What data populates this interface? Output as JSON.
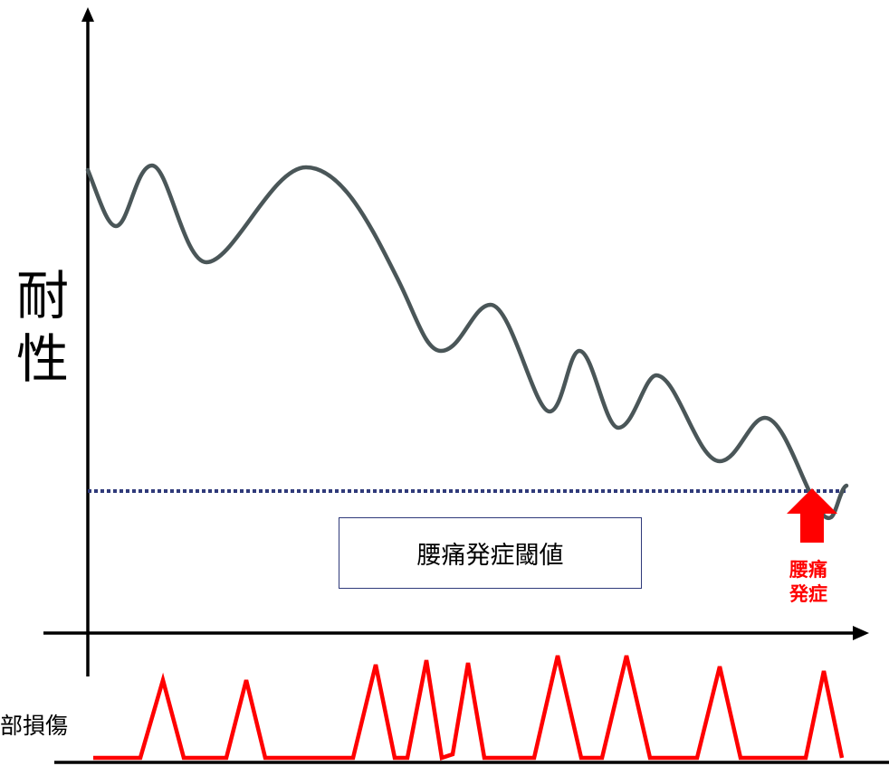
{
  "y_axis_label": [
    "耐",
    "性"
  ],
  "threshold_label": "腰痛発症閾値",
  "onset_label": [
    "腰痛",
    "発症"
  ],
  "damage_label": "部損傷",
  "colors": {
    "tolerance_curve": "#4a5658",
    "threshold_line": "#2f3a7a",
    "damage_spikes": "#ff0000",
    "onset_arrow": "#ff0000",
    "axes": "#000000"
  }
}
